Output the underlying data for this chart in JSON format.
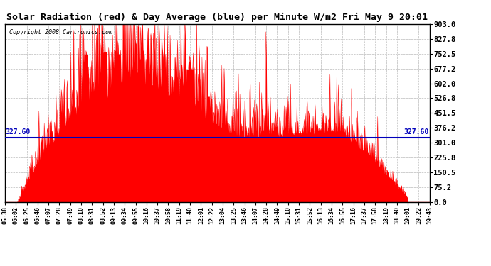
{
  "title": "Solar Radiation (red) & Day Average (blue) per Minute W/m2 Fri May 9 20:01",
  "copyright": "Copyright 2008 Cartronics.com",
  "y_max": 903.0,
  "y_min": 0.0,
  "y_ticks": [
    0.0,
    75.2,
    150.5,
    225.8,
    301.0,
    376.2,
    451.5,
    526.8,
    602.0,
    677.2,
    752.5,
    827.8,
    903.0
  ],
  "day_average": 327.6,
  "avg_label": "327.60",
  "bar_color": "#FF0000",
  "avg_line_color": "#0000BB",
  "background_color": "#FFFFFF",
  "grid_color": "#BBBBBB",
  "x_labels": [
    "05:38",
    "06:02",
    "06:25",
    "06:46",
    "07:07",
    "07:28",
    "07:49",
    "08:10",
    "08:31",
    "08:52",
    "09:13",
    "09:34",
    "09:55",
    "10:16",
    "10:37",
    "10:58",
    "11:19",
    "11:40",
    "12:01",
    "12:22",
    "13:04",
    "13:25",
    "13:46",
    "14:07",
    "14:28",
    "14:49",
    "15:10",
    "15:31",
    "15:52",
    "16:13",
    "16:34",
    "16:55",
    "17:16",
    "17:37",
    "17:58",
    "18:19",
    "18:40",
    "19:01",
    "19:22",
    "19:43"
  ],
  "n_points": 865
}
